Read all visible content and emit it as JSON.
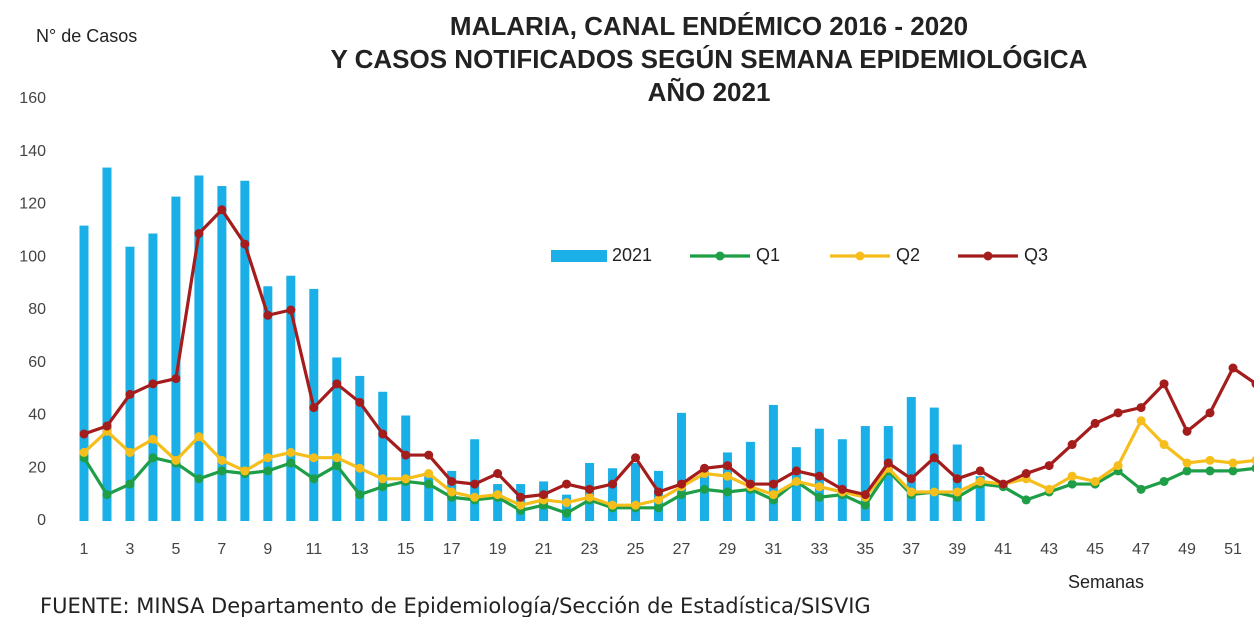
{
  "chart_data": {
    "type": "bar_line",
    "title": [
      "MALARIA,  CANAL  ENDÉMICO 2016 - 2020",
      "Y CASOS NOTIFICADOS SEGÚN SEMANA EPIDEMIOLÓGICA",
      "AÑO 2021"
    ],
    "y_axis_label": "N° de Casos",
    "x_axis_label": "Semanas",
    "source": "FUENTE: MINSA  Departamento  de Epidemiología/Sección de Estadística/SISVIG",
    "categories": [
      1,
      null,
      3,
      null,
      5,
      null,
      7,
      null,
      9,
      null,
      11,
      null,
      13,
      null,
      15,
      null,
      17,
      null,
      19,
      null,
      21,
      null,
      23,
      null,
      25,
      null,
      27,
      null,
      29,
      null,
      31,
      null,
      33,
      null,
      35,
      null,
      37,
      null,
      39,
      null,
      41,
      null,
      43,
      null,
      45,
      null,
      47,
      null,
      49,
      null,
      51,
      null
    ],
    "series": [
      {
        "name": "2021",
        "kind": "bar",
        "color": "#1aafe6",
        "values": [
          112,
          134,
          104,
          109,
          123,
          131,
          127,
          129,
          89,
          93,
          88,
          62,
          55,
          49,
          40,
          17,
          19,
          31,
          14,
          14,
          15,
          10,
          22,
          20,
          22,
          19,
          41,
          19,
          26,
          30,
          44,
          28,
          35,
          31,
          36,
          36,
          47,
          43,
          29,
          17,
          null,
          null,
          null,
          null,
          null,
          null,
          null,
          null,
          null,
          null,
          null,
          null
        ]
      },
      {
        "name": "Q1",
        "kind": "line",
        "color": "#1f9e48",
        "values": [
          24,
          10,
          14,
          24,
          22,
          16,
          19,
          18,
          19,
          22,
          16,
          21,
          10,
          13,
          15,
          14,
          9,
          8,
          9,
          4,
          6,
          3,
          8,
          5,
          5,
          5,
          10,
          12,
          11,
          12,
          8,
          15,
          9,
          10,
          6,
          19,
          10,
          11,
          9,
          14,
          13,
          8,
          11,
          14,
          14,
          19,
          12,
          15,
          19,
          19,
          19,
          20
        ]
      },
      {
        "name": "Q2",
        "kind": "line",
        "color": "#f5be1b",
        "values": [
          26,
          34,
          26,
          31,
          23,
          32,
          23,
          19,
          24,
          26,
          24,
          24,
          20,
          16,
          16,
          18,
          11,
          9,
          10,
          6,
          8,
          7,
          9,
          6,
          6,
          8,
          13,
          18,
          17,
          13,
          10,
          15,
          13,
          11,
          9,
          20,
          11,
          11,
          11,
          15,
          14,
          16,
          12,
          17,
          15,
          21,
          38,
          29,
          22,
          23,
          22,
          23
        ]
      },
      {
        "name": "Q3",
        "kind": "line",
        "color": "#a51c1c",
        "values": [
          33,
          36,
          48,
          52,
          54,
          109,
          118,
          105,
          78,
          80,
          43,
          52,
          45,
          33,
          25,
          25,
          15,
          14,
          18,
          9,
          10,
          14,
          12,
          14,
          24,
          11,
          14,
          20,
          21,
          14,
          14,
          19,
          17,
          12,
          10,
          22,
          16,
          24,
          16,
          19,
          14,
          18,
          21,
          29,
          37,
          41,
          43,
          52,
          34,
          41,
          58,
          52
        ]
      }
    ],
    "ylim": [
      0,
      160
    ],
    "yticks": [
      0,
      20,
      40,
      60,
      80,
      100,
      120,
      140,
      160
    ],
    "grid": false,
    "legend": "top-center"
  }
}
